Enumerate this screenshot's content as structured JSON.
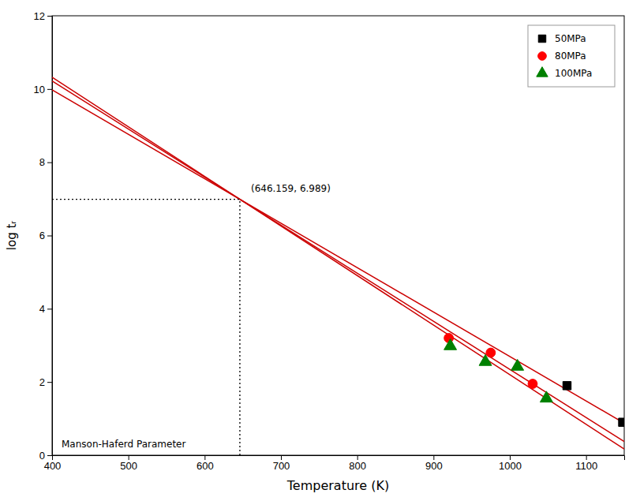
{
  "chart_data": {
    "type": "scatter",
    "xlabel": "Temperature (K)",
    "ylabel": "log tᵣ",
    "xlim": [
      400,
      1150
    ],
    "ylim": [
      0,
      12
    ],
    "xticks": [
      400,
      500,
      600,
      700,
      800,
      900,
      1000,
      1100
    ],
    "yticks": [
      0,
      2,
      4,
      6,
      8,
      10,
      12
    ],
    "legend": "upper right",
    "series": [
      {
        "type": "line",
        "color": "#cc0000",
        "x": [
          400,
          1150
        ],
        "values": [
          9.9757,
          0.8757
        ]
      },
      {
        "type": "line",
        "color": "#cc0000",
        "x": [
          400,
          1150
        ],
        "values": [
          10.2205,
          0.3747
        ]
      },
      {
        "type": "line",
        "color": "#cc0000",
        "x": [
          400,
          1150
        ],
        "values": [
          10.3208,
          0.1694
        ]
      },
      {
        "name": "50MPa",
        "color": "black",
        "marker": "square",
        "x": [
          1075,
          1148
        ],
        "values": [
          1.9,
          0.9
        ]
      },
      {
        "name": "80MPa",
        "color": "red",
        "marker": "circle",
        "x": [
          920,
          975,
          1030
        ],
        "values": [
          3.2,
          2.8,
          1.95
        ]
      },
      {
        "name": "100MPa",
        "color": "green",
        "marker": "triangle",
        "x": [
          922,
          968,
          1010,
          1048
        ],
        "values": [
          2.98,
          2.55,
          2.42,
          1.55
        ]
      },
      {
        "type": "line",
        "line_style": "dotted",
        "color": "black",
        "x": [
          400,
          646.159
        ],
        "values": [
          6.989,
          6.989
        ]
      },
      {
        "type": "line",
        "line_style": "dotted",
        "color": "black",
        "x": [
          646.159,
          646.159
        ],
        "values": [
          0,
          6.989
        ]
      }
    ],
    "annotations": [
      {
        "text": "(646.159, 6.989)"
      },
      {
        "text": "Manson-Haferd Parameter"
      }
    ]
  }
}
